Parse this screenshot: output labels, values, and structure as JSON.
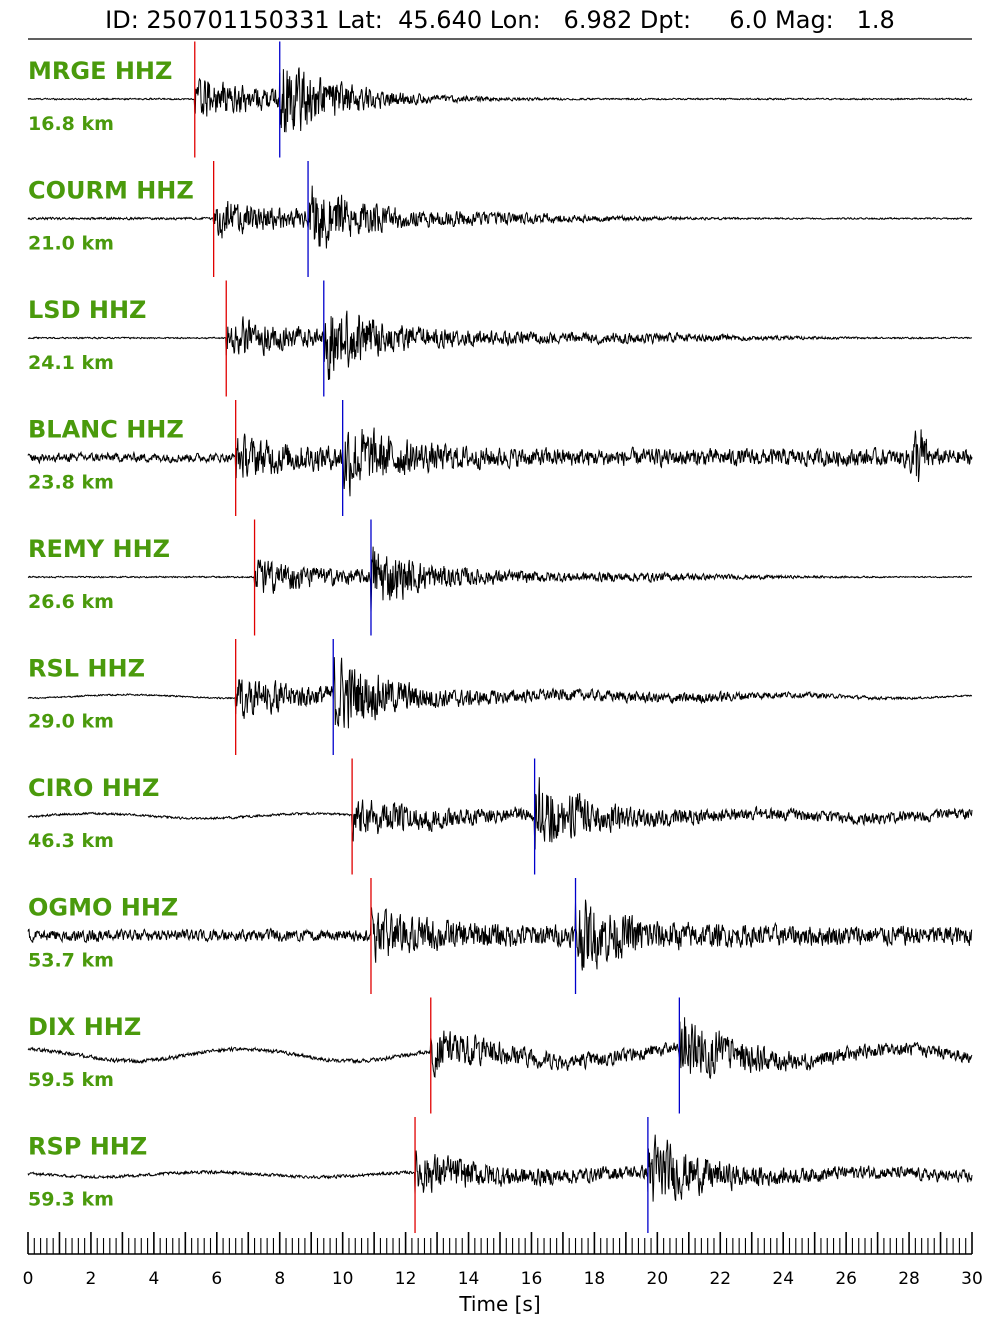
{
  "header": {
    "text": "ID: 250701150331 Lat:  45.640 Lon:   6.982 Dpt:     6.0 Mag:   1.8"
  },
  "colors": {
    "station_label": "#4a9a0c",
    "p_pick": "#e00000",
    "s_pick": "#0000cc",
    "trace": "#000000"
  },
  "chart_data": {
    "type": "line",
    "title": "ID: 250701150331 Lat:  45.640 Lon:   6.982 Dpt:     6.0 Mag:   1.8",
    "xlabel": "Time [s]",
    "xlim": [
      0,
      30
    ],
    "x_ticks": [
      "0",
      "2",
      "4",
      "6",
      "8",
      "10",
      "12",
      "14",
      "16",
      "18",
      "20",
      "22",
      "24",
      "26",
      "28",
      "30"
    ],
    "grid": false,
    "series": [
      {
        "name": "MRGE HHZ",
        "distance": "16.8 km",
        "p_pick": 5.3,
        "s_pick": 8.0,
        "noise": 0.02,
        "amp": 1.0,
        "event_end": 10.5,
        "low_freq": 0.0,
        "burst": null
      },
      {
        "name": "COURM HHZ",
        "distance": "21.0 km",
        "p_pick": 5.9,
        "s_pick": 8.9,
        "noise": 0.03,
        "amp": 0.9,
        "event_end": 16.0,
        "low_freq": 0.0,
        "burst": null
      },
      {
        "name": "LSD HHZ",
        "distance": "24.1 km",
        "p_pick": 6.3,
        "s_pick": 9.4,
        "noise": 0.02,
        "amp": 1.0,
        "event_end": 20.0,
        "low_freq": 0.0,
        "burst": null
      },
      {
        "name": "BLANC HHZ",
        "distance": "23.8 km",
        "p_pick": 6.6,
        "s_pick": 10.0,
        "noise": 0.12,
        "amp": 0.85,
        "event_end": 30.0,
        "low_freq": 0.0,
        "burst": 28.3
      },
      {
        "name": "REMY HHZ",
        "distance": "26.6 km",
        "p_pick": 7.2,
        "s_pick": 10.9,
        "noise": 0.02,
        "amp": 0.8,
        "event_end": 20.0,
        "low_freq": 0.0,
        "burst": null
      },
      {
        "name": "RSL HHZ",
        "distance": "29.0 km",
        "p_pick": 6.6,
        "s_pick": 9.7,
        "noise": 0.02,
        "amp": 1.0,
        "event_end": 22.0,
        "low_freq": 0.3,
        "burst": null
      },
      {
        "name": "CIRO HHZ",
        "distance": "46.3 km",
        "p_pick": 10.3,
        "s_pick": 16.1,
        "noise": 0.03,
        "amp": 1.0,
        "event_end": 30.0,
        "low_freq": 0.4,
        "burst": null
      },
      {
        "name": "OGMO HHZ",
        "distance": "53.7 km",
        "p_pick": 10.9,
        "s_pick": 17.4,
        "noise": 0.15,
        "amp": 0.9,
        "event_end": 30.0,
        "low_freq": 0.0,
        "burst": null
      },
      {
        "name": "DIX HHZ",
        "distance": "59.5 km",
        "p_pick": 12.8,
        "s_pick": 20.7,
        "noise": 0.05,
        "amp": 0.95,
        "event_end": 30.0,
        "low_freq": 1.0,
        "burst": null
      },
      {
        "name": "RSP HHZ",
        "distance": "59.3 km",
        "p_pick": 12.3,
        "s_pick": 19.7,
        "noise": 0.04,
        "amp": 1.0,
        "event_end": 30.0,
        "low_freq": 0.4,
        "burst": null
      }
    ]
  }
}
